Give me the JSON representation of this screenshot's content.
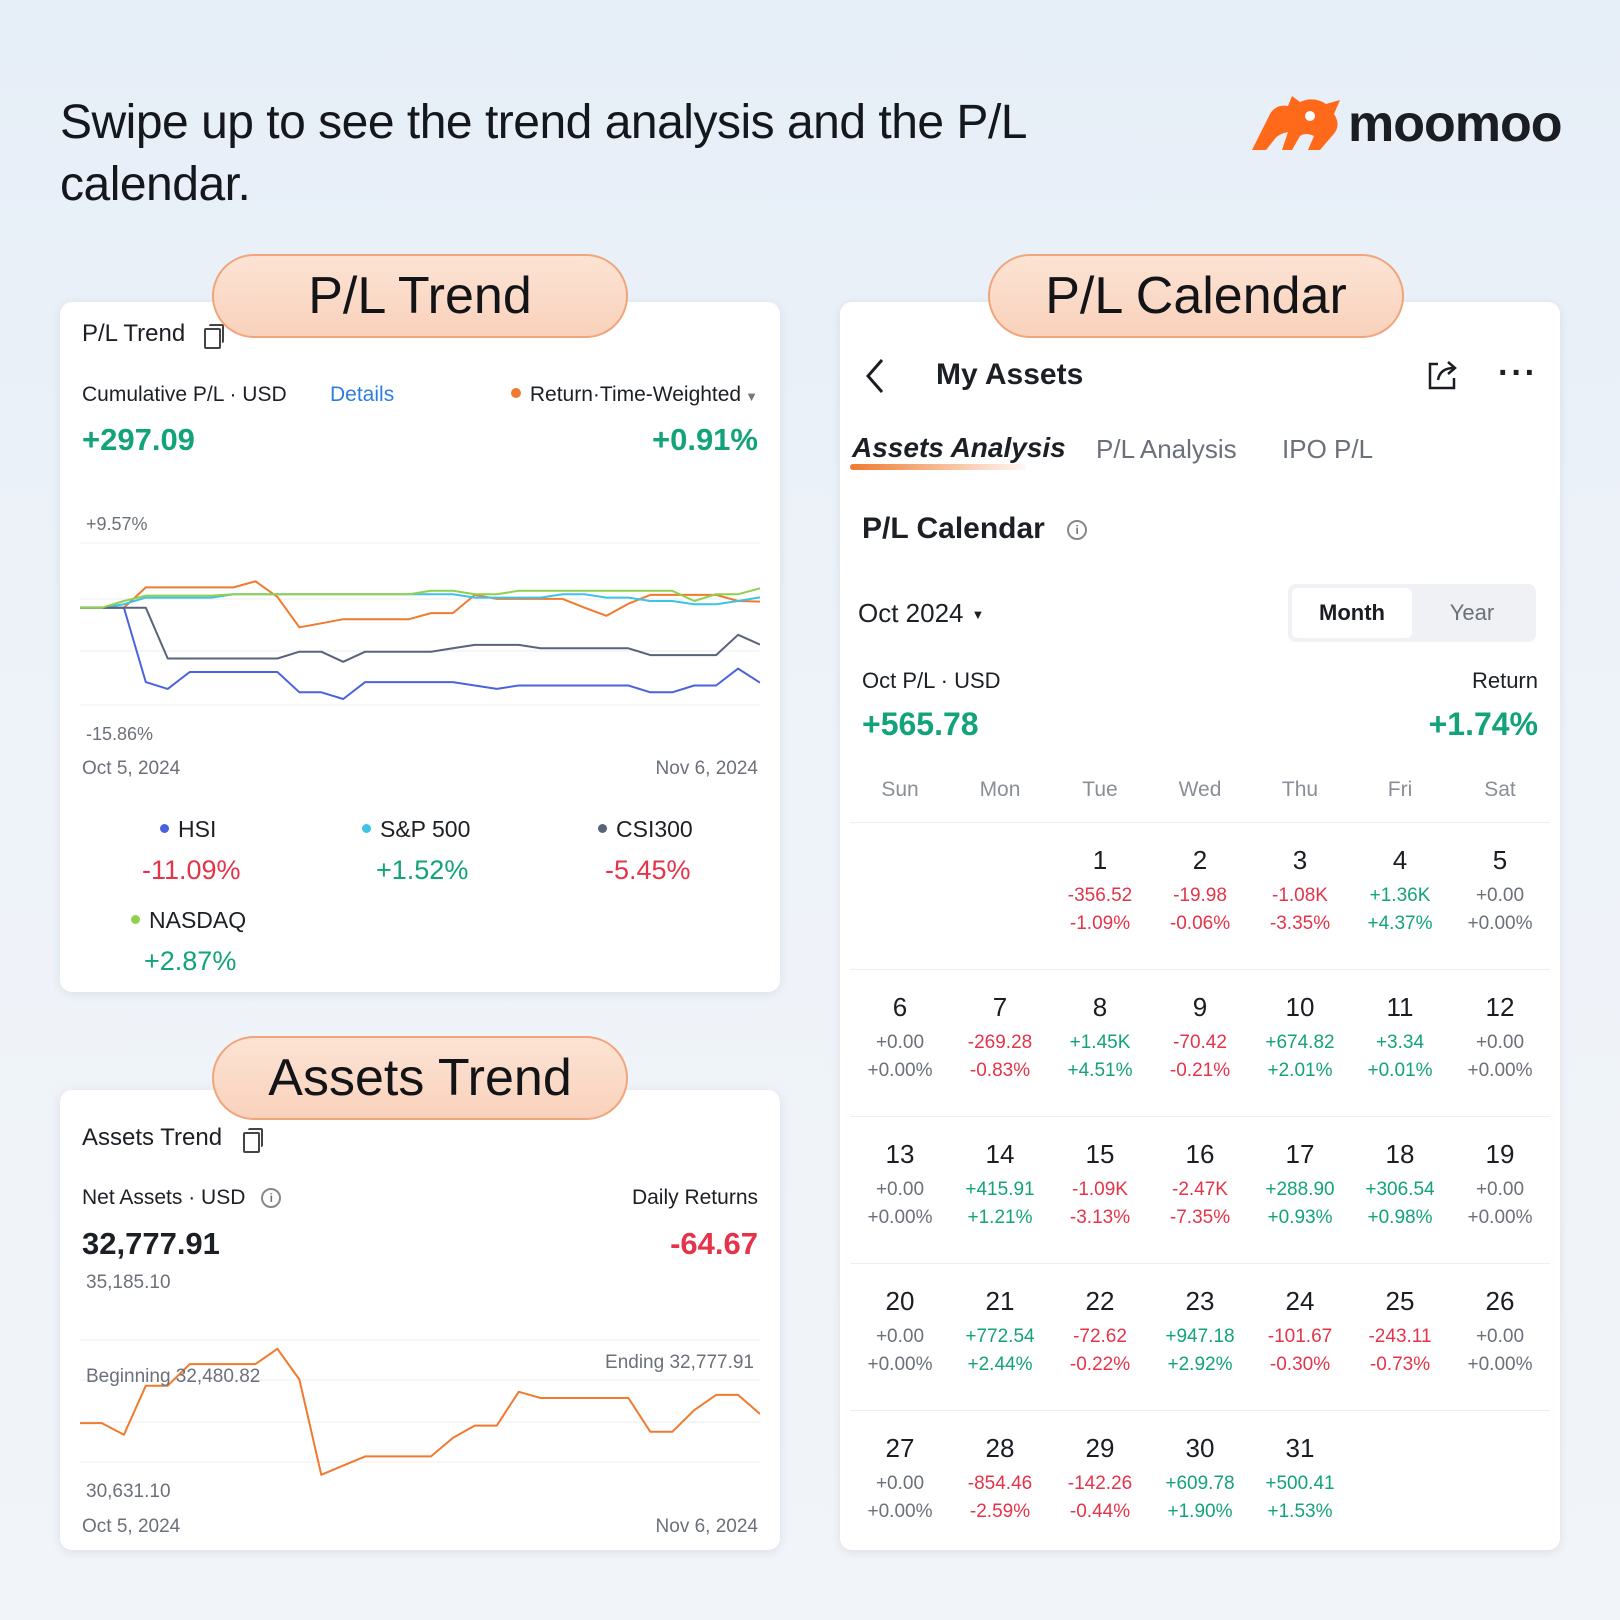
{
  "headline": "Swipe up to see the trend analysis and the P/L calendar.",
  "brand": {
    "name": "moomoo",
    "color": "#ff6a1a"
  },
  "pills": {
    "pl_trend": "P/L Trend",
    "pl_calendar": "P/L Calendar",
    "assets_trend": "Assets Trend"
  },
  "pl_trend": {
    "title": "P/L Trend",
    "cumulative_label": "Cumulative P/L · USD",
    "details_link": "Details",
    "return_label": "Return·Time-Weighted",
    "cumulative_value": "+297.09",
    "return_value": "+0.91%",
    "y_max_label": "+9.57%",
    "y_min_label": "-15.86%",
    "x_start": "Oct 5, 2024",
    "x_end": "Nov 6, 2024",
    "legend": [
      {
        "name": "HSI",
        "value": "-11.09%",
        "color": "#4a63dc"
      },
      {
        "name": "S&P 500",
        "value": "+1.52%",
        "color": "#3cc3e6"
      },
      {
        "name": "CSI300",
        "value": "-5.45%",
        "color": "#59647a"
      },
      {
        "name": "NASDAQ",
        "value": "+2.87%",
        "color": "#8fd14f"
      }
    ]
  },
  "chart_data": [
    {
      "type": "line",
      "ylim": [
        -15.86,
        9.57
      ],
      "x_range": [
        "Oct 5, 2024",
        "Nov 6, 2024"
      ],
      "series": [
        {
          "key": "return",
          "color": "#f07a2e",
          "values": [
            0,
            0,
            0,
            3.0,
            3.0,
            3.0,
            3.0,
            3.0,
            3.9,
            1.6,
            -2.9,
            -2.3,
            -1.7,
            -1.7,
            -1.7,
            -1.7,
            -0.8,
            -0.8,
            1.9,
            1.3,
            1.3,
            1.3,
            1.3,
            0,
            -1.2,
            0.6,
            1.9,
            1.9,
            1.9,
            1.9,
            1.0,
            0.91
          ]
        },
        {
          "key": "HSI",
          "color": "#4a63dc",
          "values": [
            0,
            0,
            0,
            -11.0,
            -12.0,
            -9.5,
            -9.5,
            -9.5,
            -9.5,
            -9.5,
            -12.5,
            -12.5,
            -13.5,
            -11.0,
            -11.0,
            -11.0,
            -11.0,
            -11.0,
            -11.5,
            -12.0,
            -11.5,
            -11.5,
            -11.5,
            -11.5,
            -11.5,
            -11.5,
            -12.5,
            -12.5,
            -11.5,
            -11.5,
            -9.0,
            -11.09
          ]
        },
        {
          "key": "S&P 500",
          "color": "#3cc3e6",
          "values": [
            0,
            0,
            0.5,
            1.5,
            1.5,
            1.5,
            1.5,
            2.0,
            2.0,
            2.0,
            2.0,
            2.0,
            2.0,
            2.0,
            2.0,
            2.0,
            2.0,
            2.0,
            1.5,
            1.5,
            1.5,
            1.5,
            2.0,
            2.0,
            1.5,
            1.5,
            1.0,
            1.0,
            0.5,
            0.5,
            1.0,
            1.52
          ]
        },
        {
          "key": "CSI300",
          "color": "#59647a",
          "values": [
            0,
            0,
            0,
            0,
            -7.5,
            -7.5,
            -7.5,
            -7.5,
            -7.5,
            -7.5,
            -6.5,
            -6.5,
            -8.0,
            -6.5,
            -6.5,
            -6.5,
            -6.5,
            -6.0,
            -5.5,
            -5.5,
            -5.5,
            -6.0,
            -6.0,
            -6.0,
            -6.0,
            -6.0,
            -7.0,
            -7.0,
            -7.0,
            -7.0,
            -4.0,
            -5.45
          ]
        },
        {
          "key": "NASDAQ",
          "color": "#8fd14f",
          "values": [
            0,
            0,
            1.0,
            1.8,
            1.8,
            1.8,
            1.8,
            2.0,
            2.0,
            2.0,
            2.0,
            2.0,
            2.0,
            2.0,
            2.0,
            2.0,
            2.5,
            2.5,
            2.0,
            2.0,
            2.5,
            2.5,
            2.5,
            2.5,
            2.5,
            2.5,
            2.5,
            2.5,
            1.0,
            2.0,
            2.0,
            2.87
          ]
        }
      ]
    },
    {
      "type": "line",
      "ylim": [
        30631.1,
        35185.1
      ],
      "x_range": [
        "Oct 5, 2024",
        "Nov 6, 2024"
      ],
      "series": [
        {
          "key": "net_assets",
          "color": "#f07a2e",
          "values": [
            32480.82,
            32480.82,
            32100,
            33700,
            33700,
            34400,
            34400,
            34400,
            34400,
            34900,
            33900,
            30800,
            31100,
            31400,
            31400,
            31400,
            31400,
            32000,
            32400,
            32400,
            33500,
            33300,
            33300,
            33300,
            33300,
            33300,
            32200,
            32200,
            32900,
            33400,
            33400,
            32777.91
          ]
        }
      ]
    }
  ],
  "assets_trend": {
    "title": "Assets Trend",
    "net_assets_label": "Net Assets · USD",
    "net_assets_value": "32,777.91",
    "daily_returns_label": "Daily Returns",
    "daily_returns_value": "-64.67",
    "y_max_label": "35,185.10",
    "y_min_label": "30,631.10",
    "beginning_label": "Beginning 32,480.82",
    "ending_label": "Ending 32,777.91",
    "x_start": "Oct 5, 2024",
    "x_end": "Nov 6, 2024"
  },
  "calendar": {
    "nav_title": "My Assets",
    "tabs": [
      "Assets Analysis",
      "P/L Analysis",
      "IPO P/L"
    ],
    "section_title": "P/L Calendar",
    "month_label": "Oct 2024",
    "segment": [
      "Month",
      "Year"
    ],
    "month_pl_label": "Oct P/L · USD",
    "return_label": "Return",
    "month_pl_value": "+565.78",
    "return_value": "+1.74%",
    "weekdays": [
      "Sun",
      "Mon",
      "Tue",
      "Wed",
      "Thu",
      "Fri",
      "Sat"
    ],
    "weeks": [
      [
        null,
        null,
        {
          "d": "1",
          "v": "-356.52",
          "p": "-1.09%",
          "s": "red"
        },
        {
          "d": "2",
          "v": "-19.98",
          "p": "-0.06%",
          "s": "red"
        },
        {
          "d": "3",
          "v": "-1.08K",
          "p": "-3.35%",
          "s": "red"
        },
        {
          "d": "4",
          "v": "+1.36K",
          "p": "+4.37%",
          "s": "green"
        },
        {
          "d": "5",
          "v": "+0.00",
          "p": "+0.00%",
          "s": "muted"
        }
      ],
      [
        {
          "d": "6",
          "v": "+0.00",
          "p": "+0.00%",
          "s": "muted"
        },
        {
          "d": "7",
          "v": "-269.28",
          "p": "-0.83%",
          "s": "red"
        },
        {
          "d": "8",
          "v": "+1.45K",
          "p": "+4.51%",
          "s": "green"
        },
        {
          "d": "9",
          "v": "-70.42",
          "p": "-0.21%",
          "s": "red"
        },
        {
          "d": "10",
          "v": "+674.82",
          "p": "+2.01%",
          "s": "green"
        },
        {
          "d": "11",
          "v": "+3.34",
          "p": "+0.01%",
          "s": "green"
        },
        {
          "d": "12",
          "v": "+0.00",
          "p": "+0.00%",
          "s": "muted"
        }
      ],
      [
        {
          "d": "13",
          "v": "+0.00",
          "p": "+0.00%",
          "s": "muted"
        },
        {
          "d": "14",
          "v": "+415.91",
          "p": "+1.21%",
          "s": "green"
        },
        {
          "d": "15",
          "v": "-1.09K",
          "p": "-3.13%",
          "s": "red"
        },
        {
          "d": "16",
          "v": "-2.47K",
          "p": "-7.35%",
          "s": "red"
        },
        {
          "d": "17",
          "v": "+288.90",
          "p": "+0.93%",
          "s": "green"
        },
        {
          "d": "18",
          "v": "+306.54",
          "p": "+0.98%",
          "s": "green"
        },
        {
          "d": "19",
          "v": "+0.00",
          "p": "+0.00%",
          "s": "muted"
        }
      ],
      [
        {
          "d": "20",
          "v": "+0.00",
          "p": "+0.00%",
          "s": "muted"
        },
        {
          "d": "21",
          "v": "+772.54",
          "p": "+2.44%",
          "s": "green"
        },
        {
          "d": "22",
          "v": "-72.62",
          "p": "-0.22%",
          "s": "red"
        },
        {
          "d": "23",
          "v": "+947.18",
          "p": "+2.92%",
          "s": "green"
        },
        {
          "d": "24",
          "v": "-101.67",
          "p": "-0.30%",
          "s": "red"
        },
        {
          "d": "25",
          "v": "-243.11",
          "p": "-0.73%",
          "s": "red"
        },
        {
          "d": "26",
          "v": "+0.00",
          "p": "+0.00%",
          "s": "muted"
        }
      ],
      [
        {
          "d": "27",
          "v": "+0.00",
          "p": "+0.00%",
          "s": "muted"
        },
        {
          "d": "28",
          "v": "-854.46",
          "p": "-2.59%",
          "s": "red"
        },
        {
          "d": "29",
          "v": "-142.26",
          "p": "-0.44%",
          "s": "red"
        },
        {
          "d": "30",
          "v": "+609.78",
          "p": "+1.90%",
          "s": "green"
        },
        {
          "d": "31",
          "v": "+500.41",
          "p": "+1.53%",
          "s": "green"
        },
        null,
        null
      ]
    ]
  }
}
